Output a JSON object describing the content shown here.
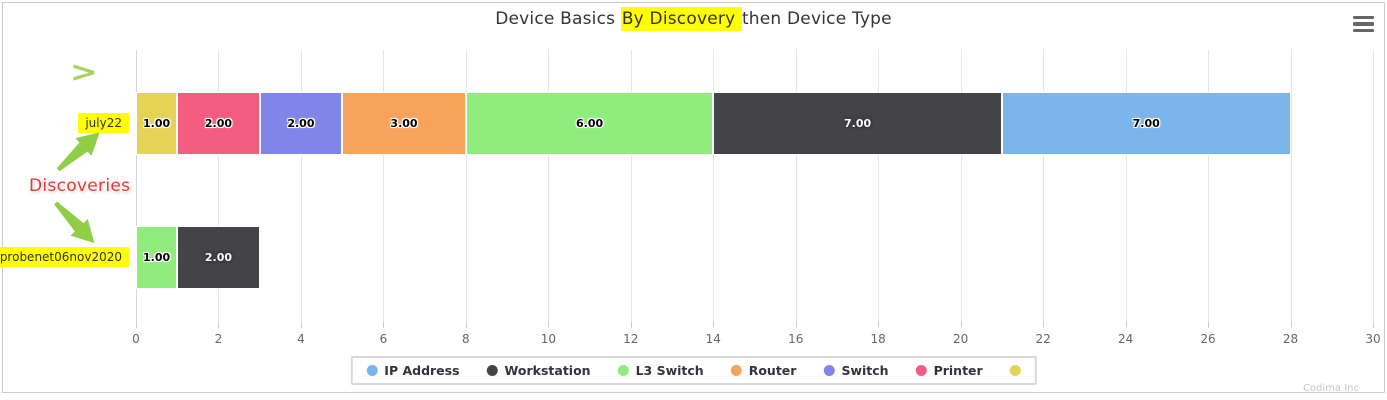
{
  "title": {
    "prefix": "Device Basics ",
    "highlight": "By Discovery ",
    "suffix": "then Device Type"
  },
  "chart_data": {
    "type": "bar",
    "orientation": "horizontal",
    "stacked": true,
    "title": "Device Basics By Discovery then Device Type",
    "categories": [
      "july22",
      "probenet06nov2020"
    ],
    "series": [
      {
        "name": "",
        "color": "#e4d354",
        "values": [
          1,
          0
        ]
      },
      {
        "name": "Printer",
        "color": "#f15c80",
        "values": [
          2,
          0
        ]
      },
      {
        "name": "Switch",
        "color": "#8085e9",
        "values": [
          2,
          0
        ]
      },
      {
        "name": "Router",
        "color": "#f7a35c",
        "values": [
          3,
          0
        ]
      },
      {
        "name": "L3 Switch",
        "color": "#90ed7d",
        "values": [
          6,
          1
        ]
      },
      {
        "name": "Workstation",
        "color": "#434348",
        "values": [
          7,
          2
        ],
        "label_color": "#ffffff"
      },
      {
        "name": "IP Address",
        "color": "#7cb5ec",
        "values": [
          7,
          0
        ]
      }
    ],
    "stack_order": "left-to-right",
    "category_totals": [
      28,
      3
    ],
    "xlim": [
      0,
      30
    ],
    "x_ticks": [
      0,
      2,
      4,
      6,
      8,
      10,
      12,
      14,
      16,
      18,
      20,
      22,
      24,
      26,
      28,
      30
    ],
    "value_label_format": "0.00",
    "grid": true,
    "legend_position": "bottom"
  },
  "legend": {
    "items": [
      {
        "label": "IP Address",
        "color": "#7cb5ec"
      },
      {
        "label": "Workstation",
        "color": "#434348"
      },
      {
        "label": "L3 Switch",
        "color": "#90ed7d"
      },
      {
        "label": "Router",
        "color": "#f7a35c"
      },
      {
        "label": "Switch",
        "color": "#8085e9"
      },
      {
        "label": "Printer",
        "color": "#f15c80"
      },
      {
        "label": "",
        "color": "#e4d354"
      }
    ]
  },
  "annotations": {
    "chevron_glyph": ">",
    "discoveries_label": "Discoveries",
    "highlight_color": "#ffff00",
    "arrow_color": "#8fce46",
    "text_color": "#e43b34"
  },
  "menu": {
    "icon": "hamburger-icon"
  },
  "credits": "Codima Inc"
}
